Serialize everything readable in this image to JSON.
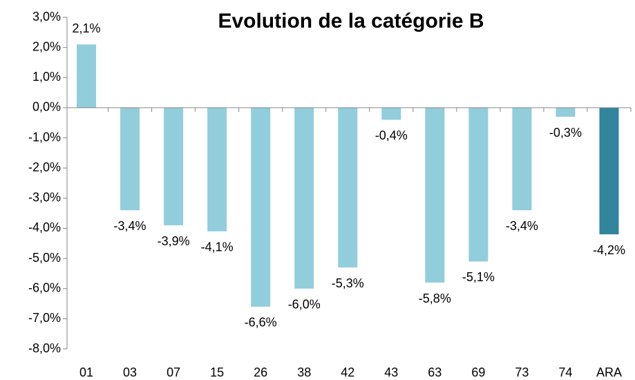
{
  "chart_data": {
    "type": "bar",
    "title": "Evolution de la catégorie B",
    "categories": [
      "01",
      "03",
      "07",
      "15",
      "26",
      "38",
      "42",
      "43",
      "63",
      "69",
      "73",
      "74",
      "ARA"
    ],
    "values": [
      2.1,
      -3.4,
      -3.9,
      -4.1,
      -6.6,
      -6.0,
      -5.3,
      -0.4,
      -5.8,
      -5.1,
      -3.4,
      -0.3,
      -4.2
    ],
    "value_labels": [
      "2,1%",
      "-3,4%",
      "-3,9%",
      "-4,1%",
      "-6,6%",
      "-6,0%",
      "-5,3%",
      "-0,4%",
      "-5,8%",
      "-5,1%",
      "-3,4%",
      "-0,3%",
      "-4,2%"
    ],
    "colors": [
      "#92cddc",
      "#92cddc",
      "#92cddc",
      "#92cddc",
      "#92cddc",
      "#92cddc",
      "#92cddc",
      "#92cddc",
      "#92cddc",
      "#92cddc",
      "#92cddc",
      "#92cddc",
      "#31859c"
    ],
    "ylim": [
      -8,
      3
    ],
    "yticks": [
      {
        "value": 3,
        "label": "3,0%"
      },
      {
        "value": 2,
        "label": "2,0%"
      },
      {
        "value": 1,
        "label": "1,0%"
      },
      {
        "value": 0,
        "label": "0,0%"
      },
      {
        "value": -1,
        "label": "-1,0%"
      },
      {
        "value": -2,
        "label": "-2,0%"
      },
      {
        "value": -3,
        "label": "-3,0%"
      },
      {
        "value": -4,
        "label": "-4,0%"
      },
      {
        "value": -5,
        "label": "-5,0%"
      },
      {
        "value": -6,
        "label": "-6,0%"
      },
      {
        "value": -7,
        "label": "-7,0%"
      },
      {
        "value": -8,
        "label": "-8,0%"
      }
    ],
    "grid": false
  }
}
